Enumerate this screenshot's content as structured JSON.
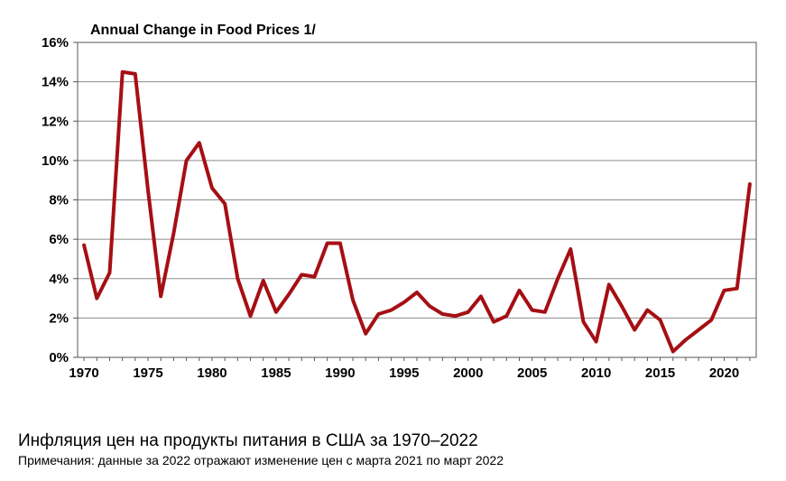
{
  "caption": "Инфляция цен на продукты питания в США за 1970–2022",
  "note": "Примечания: данные за 2022 отражают изменение цен с марта 2021 по март 2022",
  "chart_data": {
    "type": "line",
    "title": "Annual Change in Food Prices 1/",
    "xlabel": "",
    "ylabel": "",
    "xlim": [
      1969.5,
      2022.5
    ],
    "ylim": [
      0,
      16
    ],
    "x_ticks": [
      1970,
      1975,
      1980,
      1985,
      1990,
      1995,
      2000,
      2005,
      2010,
      2015,
      2020
    ],
    "y_ticks": [
      0,
      2,
      4,
      6,
      8,
      10,
      12,
      14,
      16
    ],
    "y_tick_labels": [
      "0%",
      "2%",
      "4%",
      "6%",
      "8%",
      "10%",
      "12%",
      "14%",
      "16%"
    ],
    "grid": "horizontal",
    "line_color": "#a50f14",
    "series": [
      {
        "x": [
          1970,
          1971,
          1972,
          1973,
          1974,
          1975,
          1976,
          1977,
          1978,
          1979,
          1980,
          1981,
          1982,
          1983,
          1984,
          1985,
          1986,
          1987,
          1988,
          1989,
          1990,
          1991,
          1992,
          1993,
          1994,
          1995,
          1996,
          1997,
          1998,
          1999,
          2000,
          2001,
          2002,
          2003,
          2004,
          2005,
          2006,
          2007,
          2008,
          2009,
          2010,
          2011,
          2012,
          2013,
          2014,
          2015,
          2016,
          2017,
          2018,
          2019,
          2020,
          2021,
          2022
        ],
        "values": [
          5.7,
          3.0,
          4.3,
          14.5,
          14.4,
          8.5,
          3.1,
          6.3,
          10.0,
          10.9,
          8.6,
          7.8,
          4.0,
          2.1,
          3.9,
          2.3,
          3.2,
          4.2,
          4.1,
          5.8,
          5.8,
          2.9,
          1.2,
          2.2,
          2.4,
          2.8,
          3.3,
          2.6,
          2.2,
          2.1,
          2.3,
          3.1,
          1.8,
          2.1,
          3.4,
          2.4,
          2.3,
          4.0,
          5.5,
          1.8,
          0.8,
          3.7,
          2.6,
          1.4,
          2.4,
          1.9,
          0.3,
          0.9,
          1.4,
          1.9,
          3.4,
          3.5,
          8.8
        ]
      }
    ]
  }
}
